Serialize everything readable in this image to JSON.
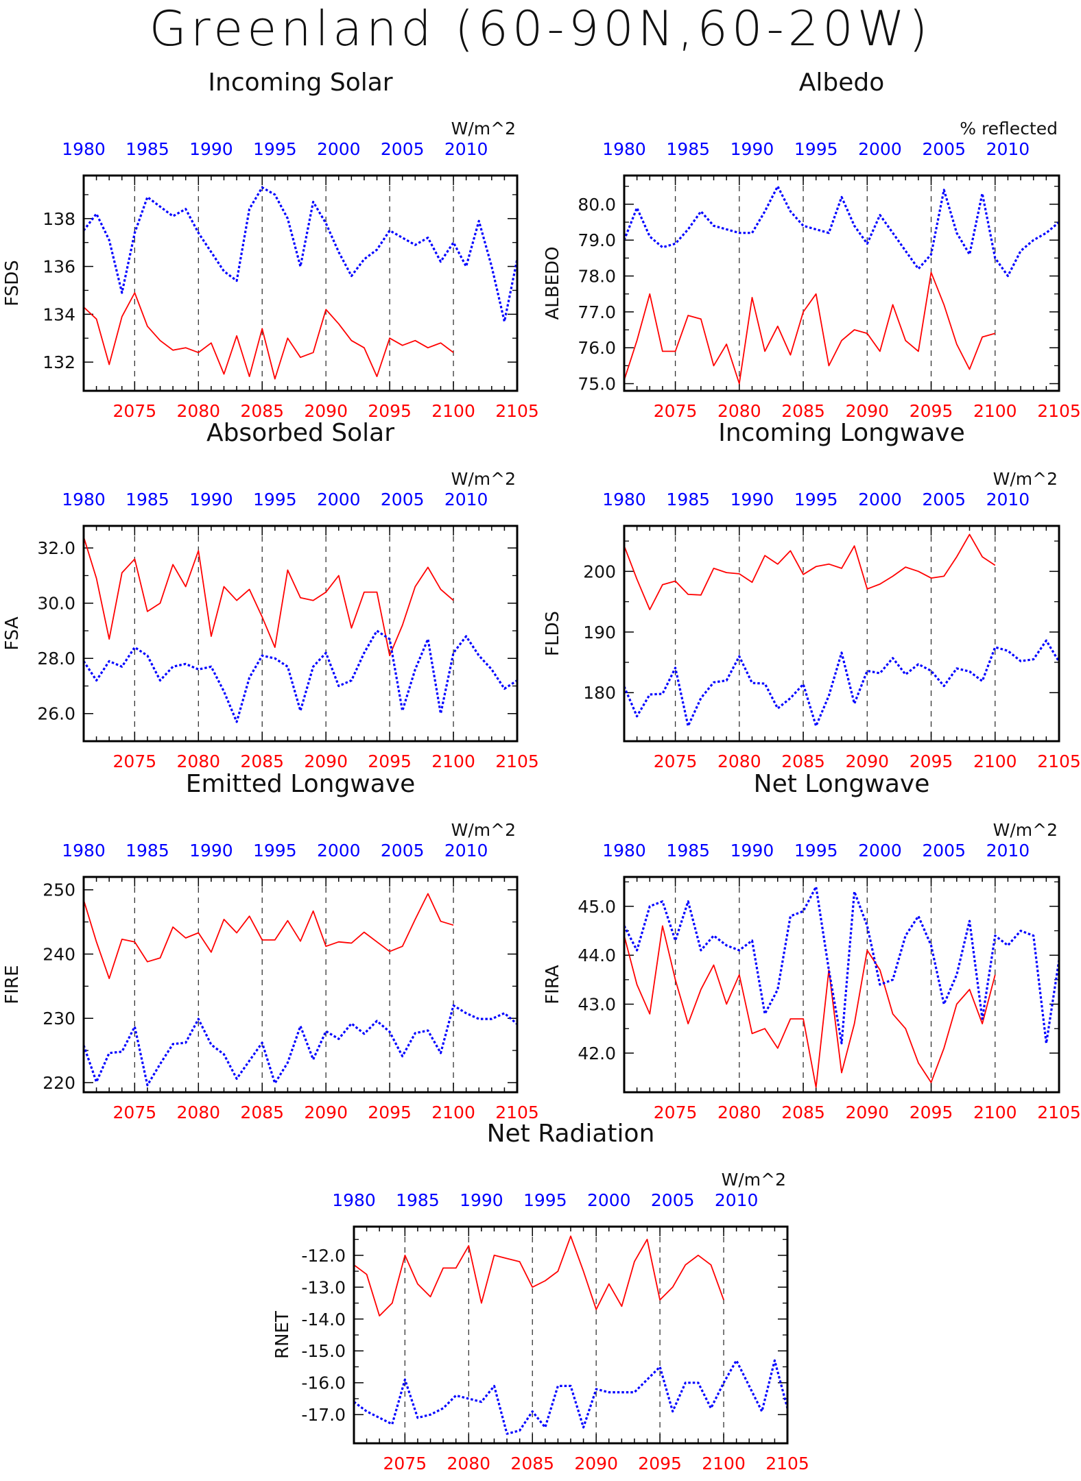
{
  "page": {
    "title": "Greenland (60-90N,60-20W)"
  },
  "chart_data": [
    {
      "type": "line",
      "title": "Incoming Solar",
      "ylabel": "FSDS",
      "units": "W/m^2",
      "top_axis_ticks": [
        "1980",
        "1985",
        "1990",
        "1995",
        "2000",
        "2005",
        "2010"
      ],
      "bottom_axis_ticks": [
        "2075",
        "2080",
        "2085",
        "2090",
        "2095",
        "2100",
        "2105"
      ],
      "ylim": [
        130.8,
        139.8
      ],
      "yticks": [
        132,
        134,
        136,
        138
      ],
      "ytick_labels": [
        "132",
        "134",
        "136",
        "138"
      ],
      "series": [
        {
          "color": "#ff0000",
          "dash": "solid",
          "x_start": 2071,
          "values": [
            134.3,
            133.8,
            131.9,
            133.9,
            134.9,
            133.5,
            132.9,
            132.5,
            132.6,
            132.4,
            132.8,
            131.5,
            133.1,
            131.4,
            133.4,
            131.3,
            133.0,
            132.2,
            132.4,
            134.2,
            133.6,
            132.9,
            132.6,
            131.4,
            133.0,
            132.7,
            132.9,
            132.6,
            132.8,
            132.4
          ]
        },
        {
          "color": "#0000ff",
          "dash": "dotted",
          "x_start": 2071,
          "values": [
            137.5,
            138.2,
            137.1,
            134.9,
            137.4,
            138.9,
            138.5,
            138.1,
            138.4,
            137.4,
            136.6,
            135.8,
            135.4,
            138.4,
            139.3,
            139.0,
            138.0,
            136.0,
            138.7,
            137.8,
            136.6,
            135.6,
            136.3,
            136.7,
            137.5,
            137.2,
            136.9,
            137.2,
            136.2,
            137.0,
            136.0,
            137.9,
            136.0,
            133.7,
            136.3
          ]
        }
      ]
    },
    {
      "type": "line",
      "title": "Albedo",
      "ylabel": "ALBEDO",
      "units": "% reflected",
      "top_axis_ticks": [
        "1980",
        "1985",
        "1990",
        "1995",
        "2000",
        "2005",
        "2010"
      ],
      "bottom_axis_ticks": [
        "2075",
        "2080",
        "2085",
        "2090",
        "2095",
        "2100",
        "2105"
      ],
      "ylim": [
        74.8,
        80.8
      ],
      "yticks": [
        75,
        76,
        77,
        78,
        79,
        80
      ],
      "ytick_labels": [
        "75.0",
        "76.0",
        "77.0",
        "78.0",
        "79.0",
        "80.0"
      ],
      "series": [
        {
          "color": "#ff0000",
          "dash": "solid",
          "x_start": 2071,
          "values": [
            75.1,
            76.2,
            77.5,
            75.9,
            75.9,
            76.9,
            76.8,
            75.5,
            76.1,
            75.0,
            77.4,
            75.9,
            76.6,
            75.8,
            77.0,
            77.5,
            75.5,
            76.2,
            76.5,
            76.4,
            75.9,
            77.2,
            76.2,
            75.9,
            78.1,
            77.2,
            76.1,
            75.4,
            76.3,
            76.4
          ]
        },
        {
          "color": "#0000ff",
          "dash": "dotted",
          "x_start": 2071,
          "values": [
            79.0,
            79.9,
            79.1,
            78.8,
            78.9,
            79.3,
            79.8,
            79.4,
            79.3,
            79.2,
            79.2,
            79.8,
            80.5,
            79.8,
            79.4,
            79.3,
            79.2,
            80.2,
            79.4,
            78.9,
            79.7,
            79.2,
            78.7,
            78.2,
            78.6,
            80.4,
            79.2,
            78.6,
            80.3,
            78.5,
            78.0,
            78.7,
            79.0,
            79.2,
            79.5
          ]
        }
      ]
    },
    {
      "type": "line",
      "title": "Absorbed Solar",
      "ylabel": "FSA",
      "units": "W/m^2",
      "top_axis_ticks": [
        "1980",
        "1985",
        "1990",
        "1995",
        "2000",
        "2005",
        "2010"
      ],
      "bottom_axis_ticks": [
        "2075",
        "2080",
        "2085",
        "2090",
        "2095",
        "2100",
        "2105"
      ],
      "ylim": [
        25.0,
        32.8
      ],
      "yticks": [
        26,
        28,
        30,
        32
      ],
      "ytick_labels": [
        "26.0",
        "28.0",
        "30.0",
        "32.0"
      ],
      "series": [
        {
          "color": "#ff0000",
          "dash": "solid",
          "x_start": 2071,
          "values": [
            32.4,
            30.9,
            28.7,
            31.1,
            31.6,
            29.7,
            30.0,
            31.4,
            30.6,
            31.9,
            28.8,
            30.6,
            30.1,
            30.5,
            29.5,
            28.4,
            31.2,
            30.2,
            30.1,
            30.4,
            31.0,
            29.1,
            30.4,
            30.4,
            28.1,
            29.2,
            30.6,
            31.3,
            30.5,
            30.1
          ]
        },
        {
          "color": "#0000ff",
          "dash": "dotted",
          "x_start": 2071,
          "values": [
            27.9,
            27.2,
            27.9,
            27.7,
            28.4,
            28.1,
            27.2,
            27.7,
            27.8,
            27.6,
            27.7,
            26.8,
            25.7,
            27.3,
            28.1,
            28.0,
            27.7,
            26.1,
            27.7,
            28.2,
            27.0,
            27.2,
            28.2,
            29.0,
            28.7,
            26.1,
            27.6,
            28.7,
            26.0,
            28.2,
            28.8,
            28.1,
            27.6,
            26.9,
            27.2
          ]
        }
      ]
    },
    {
      "type": "line",
      "title": "Incoming Longwave",
      "ylabel": "FLDS",
      "units": "W/m^2",
      "top_axis_ticks": [
        "1980",
        "1985",
        "1990",
        "1995",
        "2000",
        "2005",
        "2010"
      ],
      "bottom_axis_ticks": [
        "2075",
        "2080",
        "2085",
        "2090",
        "2095",
        "2100",
        "2105"
      ],
      "ylim": [
        172.0,
        207.5
      ],
      "yticks": [
        180,
        190,
        200
      ],
      "ytick_labels": [
        "180",
        "190",
        "200"
      ],
      "series": [
        {
          "color": "#ff0000",
          "dash": "solid",
          "x_start": 2071,
          "values": [
            204.2,
            198.7,
            193.7,
            197.8,
            198.4,
            196.2,
            196.1,
            200.5,
            199.8,
            199.6,
            198.2,
            202.6,
            201.2,
            203.4,
            199.5,
            200.8,
            201.2,
            200.5,
            204.2,
            197.1,
            197.9,
            199.2,
            200.7,
            200.0,
            198.9,
            199.2,
            202.4,
            206.1,
            202.4,
            201.0
          ]
        },
        {
          "color": "#0000ff",
          "dash": "dotted",
          "x_start": 2071,
          "values": [
            181.0,
            176.1,
            179.7,
            179.8,
            184.1,
            174.5,
            179.1,
            181.7,
            182.0,
            186.0,
            181.6,
            181.5,
            177.4,
            179.1,
            181.4,
            174.5,
            179.5,
            186.6,
            178.2,
            183.6,
            183.2,
            185.7,
            183.0,
            184.7,
            183.6,
            181.1,
            184.0,
            183.5,
            181.9,
            187.5,
            186.9,
            185.2,
            185.5,
            188.6,
            185.1
          ]
        }
      ]
    },
    {
      "type": "line",
      "title": "Emitted Longwave",
      "ylabel": "FIRE",
      "units": "W/m^2",
      "top_axis_ticks": [
        "1980",
        "1985",
        "1990",
        "1995",
        "2000",
        "2005",
        "2010"
      ],
      "bottom_axis_ticks": [
        "2075",
        "2080",
        "2085",
        "2090",
        "2095",
        "2100",
        "2105"
      ],
      "ylim": [
        218.5,
        252.0
      ],
      "yticks": [
        220,
        230,
        240,
        250
      ],
      "ytick_labels": [
        "220",
        "230",
        "240",
        "250"
      ],
      "series": [
        {
          "color": "#ff0000",
          "dash": "solid",
          "x_start": 2071,
          "values": [
            248.4,
            241.9,
            236.2,
            242.3,
            241.9,
            238.8,
            239.4,
            244.2,
            242.5,
            243.3,
            240.3,
            245.4,
            243.3,
            245.9,
            242.2,
            242.2,
            245.2,
            242.0,
            246.7,
            241.2,
            241.9,
            241.7,
            243.4,
            241.9,
            240.4,
            241.2,
            245.4,
            249.4,
            245.1,
            244.5
          ]
        },
        {
          "color": "#0000ff",
          "dash": "dotted",
          "x_start": 2071,
          "values": [
            225.8,
            220.1,
            224.6,
            224.8,
            228.7,
            219.6,
            222.9,
            226.0,
            226.2,
            229.9,
            225.9,
            224.4,
            220.6,
            223.4,
            226.2,
            219.9,
            223.1,
            228.8,
            223.6,
            228.0,
            226.8,
            229.2,
            227.6,
            229.6,
            227.9,
            224.1,
            227.7,
            228.1,
            224.6,
            232.0,
            230.8,
            229.9,
            229.9,
            230.8,
            229.1
          ]
        }
      ]
    },
    {
      "type": "line",
      "title": "Net Longwave",
      "ylabel": "FIRA",
      "units": "W/m^2",
      "top_axis_ticks": [
        "1980",
        "1985",
        "1990",
        "1995",
        "2000",
        "2005",
        "2010"
      ],
      "bottom_axis_ticks": [
        "2075",
        "2080",
        "2085",
        "2090",
        "2095",
        "2100",
        "2105"
      ],
      "ylim": [
        41.2,
        45.6
      ],
      "yticks": [
        42,
        43,
        44,
        45
      ],
      "ytick_labels": [
        "42.0",
        "43.0",
        "44.0",
        "45.0"
      ],
      "series": [
        {
          "color": "#ff0000",
          "dash": "solid",
          "x_start": 2071,
          "values": [
            44.4,
            43.4,
            42.8,
            44.6,
            43.5,
            42.6,
            43.3,
            43.8,
            43.0,
            43.6,
            42.4,
            42.5,
            42.1,
            42.7,
            42.7,
            41.3,
            43.7,
            41.6,
            42.6,
            44.1,
            43.7,
            42.8,
            42.5,
            41.8,
            41.4,
            42.1,
            43.0,
            43.3,
            42.6,
            43.6
          ]
        },
        {
          "color": "#0000ff",
          "dash": "dotted",
          "x_start": 2071,
          "values": [
            44.6,
            44.1,
            45.0,
            45.1,
            44.3,
            45.1,
            44.1,
            44.4,
            44.2,
            44.1,
            44.3,
            42.8,
            43.3,
            44.8,
            44.9,
            45.4,
            43.7,
            42.2,
            45.3,
            44.6,
            43.4,
            43.5,
            44.4,
            44.8,
            44.2,
            43.0,
            43.6,
            44.7,
            42.7,
            44.4,
            44.2,
            44.5,
            44.4,
            42.2,
            43.9
          ]
        }
      ]
    },
    {
      "type": "line",
      "title": "Net Radiation",
      "ylabel": "RNET",
      "units": "W/m^2",
      "top_axis_ticks": [
        "1980",
        "1985",
        "1990",
        "1995",
        "2000",
        "2005",
        "2010"
      ],
      "bottom_axis_ticks": [
        "2075",
        "2080",
        "2085",
        "2090",
        "2095",
        "2100",
        "2105"
      ],
      "ylim": [
        -17.9,
        -11.1
      ],
      "yticks": [
        -17,
        -16,
        -15,
        -14,
        -13,
        -12
      ],
      "ytick_labels": [
        "-17.0",
        "-16.0",
        "-15.0",
        "-14.0",
        "-13.0",
        "-12.0"
      ],
      "series": [
        {
          "color": "#ff0000",
          "dash": "solid",
          "x_start": 2071,
          "values": [
            -12.3,
            -12.6,
            -13.9,
            -13.5,
            -12.0,
            -12.9,
            -13.3,
            -12.4,
            -12.4,
            -11.7,
            -13.5,
            -12.0,
            -12.1,
            -12.2,
            -13.0,
            -12.8,
            -12.5,
            -11.4,
            -12.5,
            -13.7,
            -12.9,
            -13.6,
            -12.2,
            -11.5,
            -13.4,
            -13.0,
            -12.3,
            -12.0,
            -12.3,
            -13.4
          ]
        },
        {
          "color": "#0000ff",
          "dash": "dotted",
          "x_start": 2071,
          "values": [
            -16.6,
            -16.9,
            -17.1,
            -17.3,
            -15.9,
            -17.1,
            -17.0,
            -16.8,
            -16.4,
            -16.5,
            -16.6,
            -16.1,
            -17.6,
            -17.5,
            -16.9,
            -17.4,
            -16.1,
            -16.1,
            -17.4,
            -16.2,
            -16.3,
            -16.3,
            -16.3,
            -15.9,
            -15.5,
            -16.9,
            -16.0,
            -16.0,
            -16.8,
            -16.0,
            -15.3,
            -16.1,
            -16.9,
            -15.3,
            -16.8
          ]
        }
      ]
    }
  ]
}
